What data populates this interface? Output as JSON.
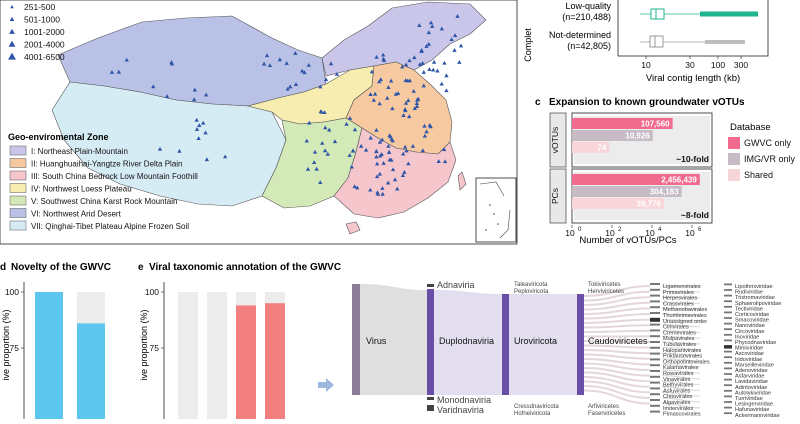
{
  "map": {
    "elevation_legend": [
      "251-500",
      "501-1000",
      "1001-2000",
      "2001-4000",
      "4001-6500"
    ],
    "zone_title": "Geo-enviromental Zone",
    "zones": [
      {
        "label": "I: Northeast Plain-Mountain",
        "color": "#c9c6ea"
      },
      {
        "label": "II: Huanghuaihai-Yangtze River Delta Plain",
        "color": "#f6c9a0"
      },
      {
        "label": "III: South China Bedrock Low Mountain Foothill",
        "color": "#f5c6cc"
      },
      {
        "label": "IV: Northwest Loess Plateau",
        "color": "#f7edb0"
      },
      {
        "label": "V: Southwest China Karst Rock Mountain",
        "color": "#d4e9b8"
      },
      {
        "label": "VI: Northwest Arid Desert",
        "color": "#b9c1e6"
      },
      {
        "label": "VII: Qinghai-Tibet Plateau Alpine Frozen Soil",
        "color": "#d6ecf5"
      }
    ],
    "marker_color": "#2e55a8"
  },
  "panel_b": {
    "ylabel": "Complet",
    "rows": [
      {
        "name": "Low-quality",
        "count": "(n=210,488)",
        "color": "#1fb58f"
      },
      {
        "name": "Not-determined",
        "count": "(n=42,805)",
        "color": "#9a9a9a"
      }
    ],
    "xticks": [
      "10",
      "30",
      "100",
      "300"
    ],
    "xlabel": "Viral contig length (kb)"
  },
  "panel_c": {
    "letter": "c",
    "title": "Expansion to known groundwater vOTUs",
    "legend_title": "Database",
    "legend": [
      {
        "label": "GWVC only",
        "color": "#f16b8f"
      },
      {
        "label": "IMG/VR only",
        "color": "#c7bcc6"
      },
      {
        "label": "Shared",
        "color": "#f8d5d9"
      }
    ],
    "groups": [
      {
        "name": "vOTUs",
        "fold": "~10-fold",
        "bars": [
          {
            "value": 107560,
            "label": "107,560"
          },
          {
            "value": 10926,
            "label": "10,926"
          },
          {
            "value": 74,
            "label": "74"
          }
        ]
      },
      {
        "name": "PCs",
        "fold": "~8-fold",
        "bars": [
          {
            "value": 2456439,
            "label": "2,456,439"
          },
          {
            "value": 304183,
            "label": "304,183"
          },
          {
            "value": 39776,
            "label": "39,776"
          }
        ]
      }
    ],
    "xticks": [
      "10",
      "10",
      "10",
      "10"
    ],
    "xtick_exponents": [
      "0",
      "2",
      "4",
      "6"
    ],
    "xlabel": "Number of vOTUs/PCs"
  },
  "panel_d": {
    "letter": "d",
    "title": "Novelty of the GWVC",
    "ylabel": "ive proportion (%)",
    "yticks": [
      "100",
      "75"
    ],
    "bars": [
      {
        "value": 100
      },
      {
        "value": 86
      }
    ]
  },
  "panel_e": {
    "letter": "e",
    "title": "Viral taxonomic annotation of the GWVC",
    "ylabel": "ive proportion (%)",
    "yticks": [
      "100",
      "75"
    ],
    "bars": [
      {
        "value": 100
      },
      {
        "value": 100
      },
      {
        "value": 94
      },
      {
        "value": 95
      }
    ],
    "realms": [
      "Adnaviria",
      "Duplodnaviria",
      "Monodnaviria",
      "Varidnaviria"
    ],
    "root": "Virus",
    "phylum": "Uroviricota",
    "class_name": "Caudoviricetes",
    "l3_top": [
      "Taleaviricota",
      "Peploviricota"
    ],
    "l3_bottom": [
      "Cressdnaviricota",
      "Hofneiviricota"
    ],
    "l4_top": [
      "Tokiviricetes",
      "Herviviricetes"
    ],
    "l4_bottom": [
      "Arfiviricetes",
      "Faserviricetes"
    ],
    "orders": [
      "Ligamenvirales",
      "Primavirales",
      "Herpesvirales",
      "Crassvirales",
      "Methanobavirales",
      "Thumleimavirales",
      "Unassigned order",
      "Cirlivirales",
      "Cremevirales",
      "Mulpavirales",
      "Tubulavirales",
      "Halopanivirales",
      "Priklausovirales",
      "Orthopolintovirales",
      "Kalamavirales",
      "Rowavirales",
      "Vinavirales",
      "Belfryvirales",
      "Asfuvirales",
      "Chitovirales",
      "Algavirales",
      "Imitervirales",
      "Pimascovirales"
    ],
    "families": [
      "Lipothrixviridae",
      "Rudiviridae",
      "Tristromaviridae",
      "Sphaerolipoviridae",
      "Tectiviridae",
      "Corticoviridae",
      "Smacoviridae",
      "Nanoviridae",
      "Circoviridae",
      "Inoviridae",
      "Phycodnaviridae",
      "Mimiviridae",
      "Ascoviridae",
      "Iridoviridae",
      "Marseilleviridae",
      "Adenoviridae",
      "Asfarviridae",
      "Lavidaviridae",
      "Adintoviridae",
      "Autolykiviridae",
      "Turriviridae",
      "Lesingerviridae",
      "Hafunaviridae",
      "Ackermannviridae"
    ]
  }
}
